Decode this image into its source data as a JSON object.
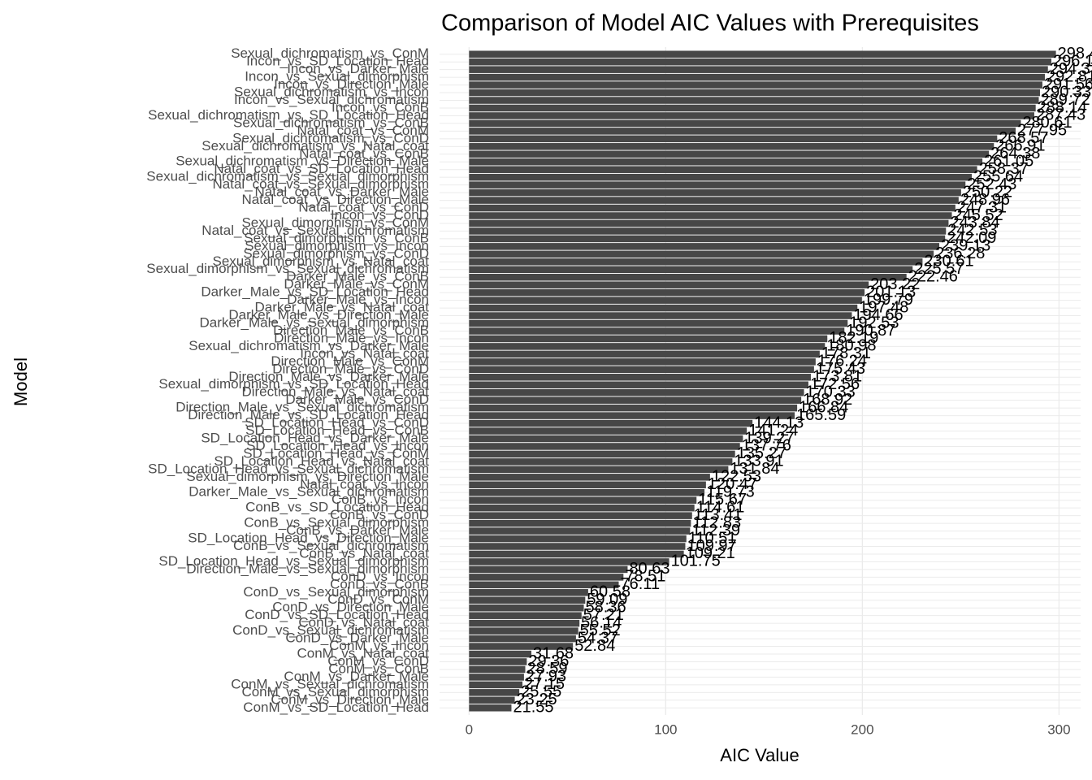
{
  "chart_data": {
    "type": "barh",
    "title": "Comparison of Model AIC Values with Prerequisites",
    "x_label": "AIC Value",
    "y_label": "Model",
    "color": "#474747",
    "grid": true,
    "xlim": [
      -15,
      311
    ],
    "xticks": [
      0,
      100,
      200,
      300
    ],
    "categories": [
      "Sexual_dichromatism_vs_ConM",
      "Incon_vs_SD_Location_Head",
      "Incon_vs_Darker_Male",
      "Incon_vs_Sexual_dimorphism",
      "Incon_vs_Direction_Male",
      "Sexual_dichromatism_vs_Incon",
      "Incon_vs_Sexual_dichromatism",
      "Incon_vs_ConB",
      "Sexual_dichromatism_vs_SD_Location_Head",
      "Sexual_dichromatism_vs_ConB",
      "Natal_coat_vs_ConM",
      "Sexual_dichromatism_vs_ConD",
      "Sexual_dichromatism_vs_Natal_coat",
      "Natal_coat_vs_ConB",
      "Sexual_dichromatism_vs_Direction_Male",
      "Natal_coat_vs_SD_Location_Head",
      "Sexual_dichromatism_vs_Sexual_dimorphism",
      "Natal_coat_vs_Sexual_dimorphism",
      "Natal_coat_vs_Darker_Male",
      "Natal_coat_vs_Direction_Male",
      "Natal_coat_vs_ConD",
      "Incon_vs_ConD",
      "Sexual_dimorphism_vs_ConM",
      "Natal_coat_vs_Sexual_dichromatism",
      "Sexual_dimorphism_vs_ConB",
      "Sexual_dimorphism_vs_Incon",
      "Sexual_dimorphism_vs_ConD",
      "Sexual_dimorphism_vs_Natal_coat",
      "Sexual_dimorphism_vs_Sexual_dichromatism",
      "Darker_Male_vs_ConB",
      "Darker_Male_vs_ConM",
      "Darker_Male_vs_SD_Location_Head",
      "Darker_Male_vs_Incon",
      "Darker_Male_vs_Natal_coat",
      "Darker_Male_vs_Direction_Male",
      "Darker_Male_vs_Sexual_dimorphism",
      "Direction_Male_vs_ConB",
      "Direction_Male_vs_Incon",
      "Sexual_dichromatism_vs_Darker_Male",
      "Incon_vs_Natal_coat",
      "Direction_Male_vs_ConM",
      "Direction_Male_vs_ConD",
      "Direction_Male_vs_Darker_Male",
      "Sexual_dimorphism_vs_SD_Location_Head",
      "Direction_Male_vs_Natal_coat",
      "Darker_Male_vs_ConD",
      "Direction_Male_vs_Sexual_dichromatism",
      "Direction_Male_vs_SD_Location_Head",
      "SD_Location_Head_vs_ConD",
      "SD_Location_Head_vs_ConB",
      "SD_Location_Head_vs_Darker_Male",
      "SD_Location_Head_vs_Incon",
      "SD_Location_Head_vs_ConM",
      "SD_Location_Head_vs_Natal_coat",
      "SD_Location_Head_vs_Sexual_dichromatism",
      "Sexual_dimorphism_vs_Direction_Male",
      "Natal_coat_vs_Incon",
      "Darker_Male_vs_Sexual_dichromatism",
      "ConB_vs_Incon",
      "ConB_vs_SD_Location_Head",
      "ConB_vs_ConD",
      "ConB_vs_Sexual_dimorphism",
      "ConB_vs_Darker_Male",
      "SD_Location_Head_vs_Direction_Male",
      "ConB_vs_Sexual_dichromatism",
      "ConB_vs_Natal_coat",
      "SD_Location_Head_vs_Sexual_dimorphism",
      "Direction_Male_vs_Sexual_dimorphism",
      "ConD_vs_Incon",
      "ConD_vs_ConB",
      "ConD_vs_Sexual_dimorphism",
      "ConD_vs_ConM",
      "ConD_vs_Direction_Male",
      "ConD_vs_SD_Location_Head",
      "ConD_vs_Natal_coat",
      "ConD_vs_Sexual_dichromatism",
      "ConD_vs_Darker_Male",
      "ConM_vs_Incon",
      "ConM_vs_Natal_coat",
      "ConM_vs_ConD",
      "ConM_vs_ConB",
      "ConM_vs_Darker_Male",
      "ConM_vs_Sexual_dichromatism",
      "ConM_vs_Sexual_dimorphism",
      "ConM_vs_Direction_Male",
      "ConM_vs_SD_Location_Head"
    ],
    "values": [
      298.45,
      296.12,
      294.37,
      292.81,
      291.56,
      290.33,
      289.72,
      288.14,
      287.43,
      280.61,
      277.95,
      268.57,
      266.91,
      264.38,
      261.05,
      258.37,
      255.64,
      252.43,
      250.22,
      248.96,
      247.31,
      245.52,
      243.84,
      242.53,
      242.09,
      239.13,
      236.28,
      230.61,
      225.57,
      222.46,
      203.22,
      201.13,
      199.79,
      197.48,
      194.66,
      192.53,
      190.87,
      182.19,
      180.98,
      178.31,
      176.24,
      175.43,
      173.81,
      172.56,
      170.33,
      168.92,
      166.84,
      165.59,
      144.13,
      141.24,
      139.27,
      137.76,
      135.27,
      133.91,
      131.84,
      122.53,
      120.47,
      119.73,
      115.67,
      114.61,
      113.41,
      112.83,
      112.39,
      110.51,
      109.97,
      109.21,
      101.75,
      80.63,
      78.51,
      76.11,
      60.58,
      59.09,
      58.36,
      57.21,
      56.14,
      55.52,
      54.37,
      52.84,
      31.68,
      29.36,
      28.59,
      27.93,
      27.15,
      25.55,
      23.25,
      21.55
    ]
  }
}
